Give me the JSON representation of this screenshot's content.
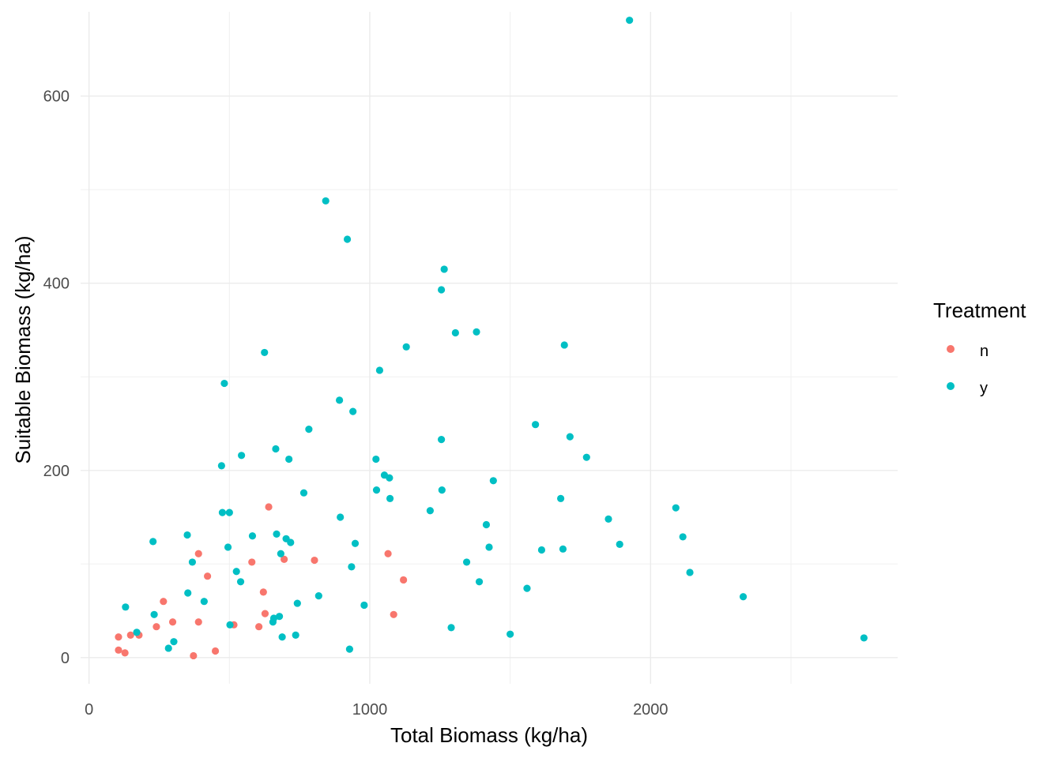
{
  "chart_data": {
    "type": "scatter",
    "title": "",
    "xlabel": "Total Biomass (kg/ha)",
    "ylabel": "Suitable Biomass (kg/ha)",
    "xlim": [
      -30,
      2880
    ],
    "ylim": [
      -28,
      690
    ],
    "x_ticks": [
      0,
      1000,
      2000
    ],
    "x_tick_labels": [
      "0",
      "1000",
      "2000"
    ],
    "y_ticks": [
      0,
      200,
      400,
      600
    ],
    "y_tick_labels": [
      "0",
      "200",
      "400",
      "600"
    ],
    "grid": true,
    "legend": {
      "title": "Treatment",
      "position": "right",
      "entries": [
        {
          "label": "n",
          "color": "#F8766D"
        },
        {
          "label": "y",
          "color": "#00BFC4"
        }
      ]
    },
    "series": [
      {
        "name": "n",
        "color": "#F8766D",
        "points": [
          [
            105,
            22
          ],
          [
            105,
            8
          ],
          [
            128,
            5
          ],
          [
            148,
            24
          ],
          [
            178,
            24
          ],
          [
            240,
            33
          ],
          [
            265,
            60
          ],
          [
            298,
            38
          ],
          [
            372,
            2
          ],
          [
            390,
            111
          ],
          [
            390,
            38
          ],
          [
            422,
            87
          ],
          [
            450,
            7
          ],
          [
            516,
            35
          ],
          [
            580,
            102
          ],
          [
            605,
            33
          ],
          [
            621,
            70
          ],
          [
            627,
            47
          ],
          [
            640,
            161
          ],
          [
            695,
            105
          ],
          [
            803,
            104
          ],
          [
            1065,
            111
          ],
          [
            1085,
            46
          ],
          [
            1120,
            83
          ]
        ]
      },
      {
        "name": "y",
        "color": "#00BFC4",
        "points": [
          [
            130,
            54
          ],
          [
            170,
            27
          ],
          [
            228,
            124
          ],
          [
            232,
            46
          ],
          [
            283,
            10
          ],
          [
            302,
            17
          ],
          [
            350,
            131
          ],
          [
            352,
            69
          ],
          [
            368,
            102
          ],
          [
            410,
            60
          ],
          [
            472,
            205
          ],
          [
            475,
            155
          ],
          [
            482,
            293
          ],
          [
            495,
            118
          ],
          [
            500,
            155
          ],
          [
            502,
            35
          ],
          [
            525,
            92
          ],
          [
            540,
            81
          ],
          [
            543,
            216
          ],
          [
            582,
            130
          ],
          [
            625,
            326
          ],
          [
            655,
            38
          ],
          [
            658,
            42
          ],
          [
            665,
            223
          ],
          [
            668,
            132
          ],
          [
            678,
            44
          ],
          [
            683,
            111
          ],
          [
            688,
            22
          ],
          [
            702,
            127
          ],
          [
            712,
            212
          ],
          [
            718,
            123
          ],
          [
            736,
            24
          ],
          [
            742,
            58
          ],
          [
            765,
            176
          ],
          [
            783,
            244
          ],
          [
            818,
            66
          ],
          [
            843,
            488
          ],
          [
            892,
            275
          ],
          [
            895,
            150
          ],
          [
            920,
            447
          ],
          [
            928,
            9
          ],
          [
            935,
            97
          ],
          [
            940,
            263
          ],
          [
            948,
            122
          ],
          [
            980,
            56
          ],
          [
            1022,
            212
          ],
          [
            1024,
            179
          ],
          [
            1035,
            307
          ],
          [
            1052,
            195
          ],
          [
            1070,
            192
          ],
          [
            1072,
            170
          ],
          [
            1130,
            332
          ],
          [
            1215,
            157
          ],
          [
            1255,
            393
          ],
          [
            1255,
            233
          ],
          [
            1257,
            179
          ],
          [
            1265,
            415
          ],
          [
            1290,
            32
          ],
          [
            1305,
            347
          ],
          [
            1345,
            102
          ],
          [
            1380,
            348
          ],
          [
            1390,
            81
          ],
          [
            1415,
            142
          ],
          [
            1425,
            118
          ],
          [
            1440,
            189
          ],
          [
            1500,
            25
          ],
          [
            1560,
            74
          ],
          [
            1590,
            249
          ],
          [
            1612,
            115
          ],
          [
            1680,
            170
          ],
          [
            1688,
            116
          ],
          [
            1693,
            334
          ],
          [
            1713,
            236
          ],
          [
            1772,
            214
          ],
          [
            1850,
            148
          ],
          [
            1890,
            121
          ],
          [
            1925,
            681
          ],
          [
            2090,
            160
          ],
          [
            2115,
            129
          ],
          [
            2140,
            91
          ],
          [
            2330,
            65
          ],
          [
            2760,
            21
          ]
        ]
      }
    ]
  }
}
